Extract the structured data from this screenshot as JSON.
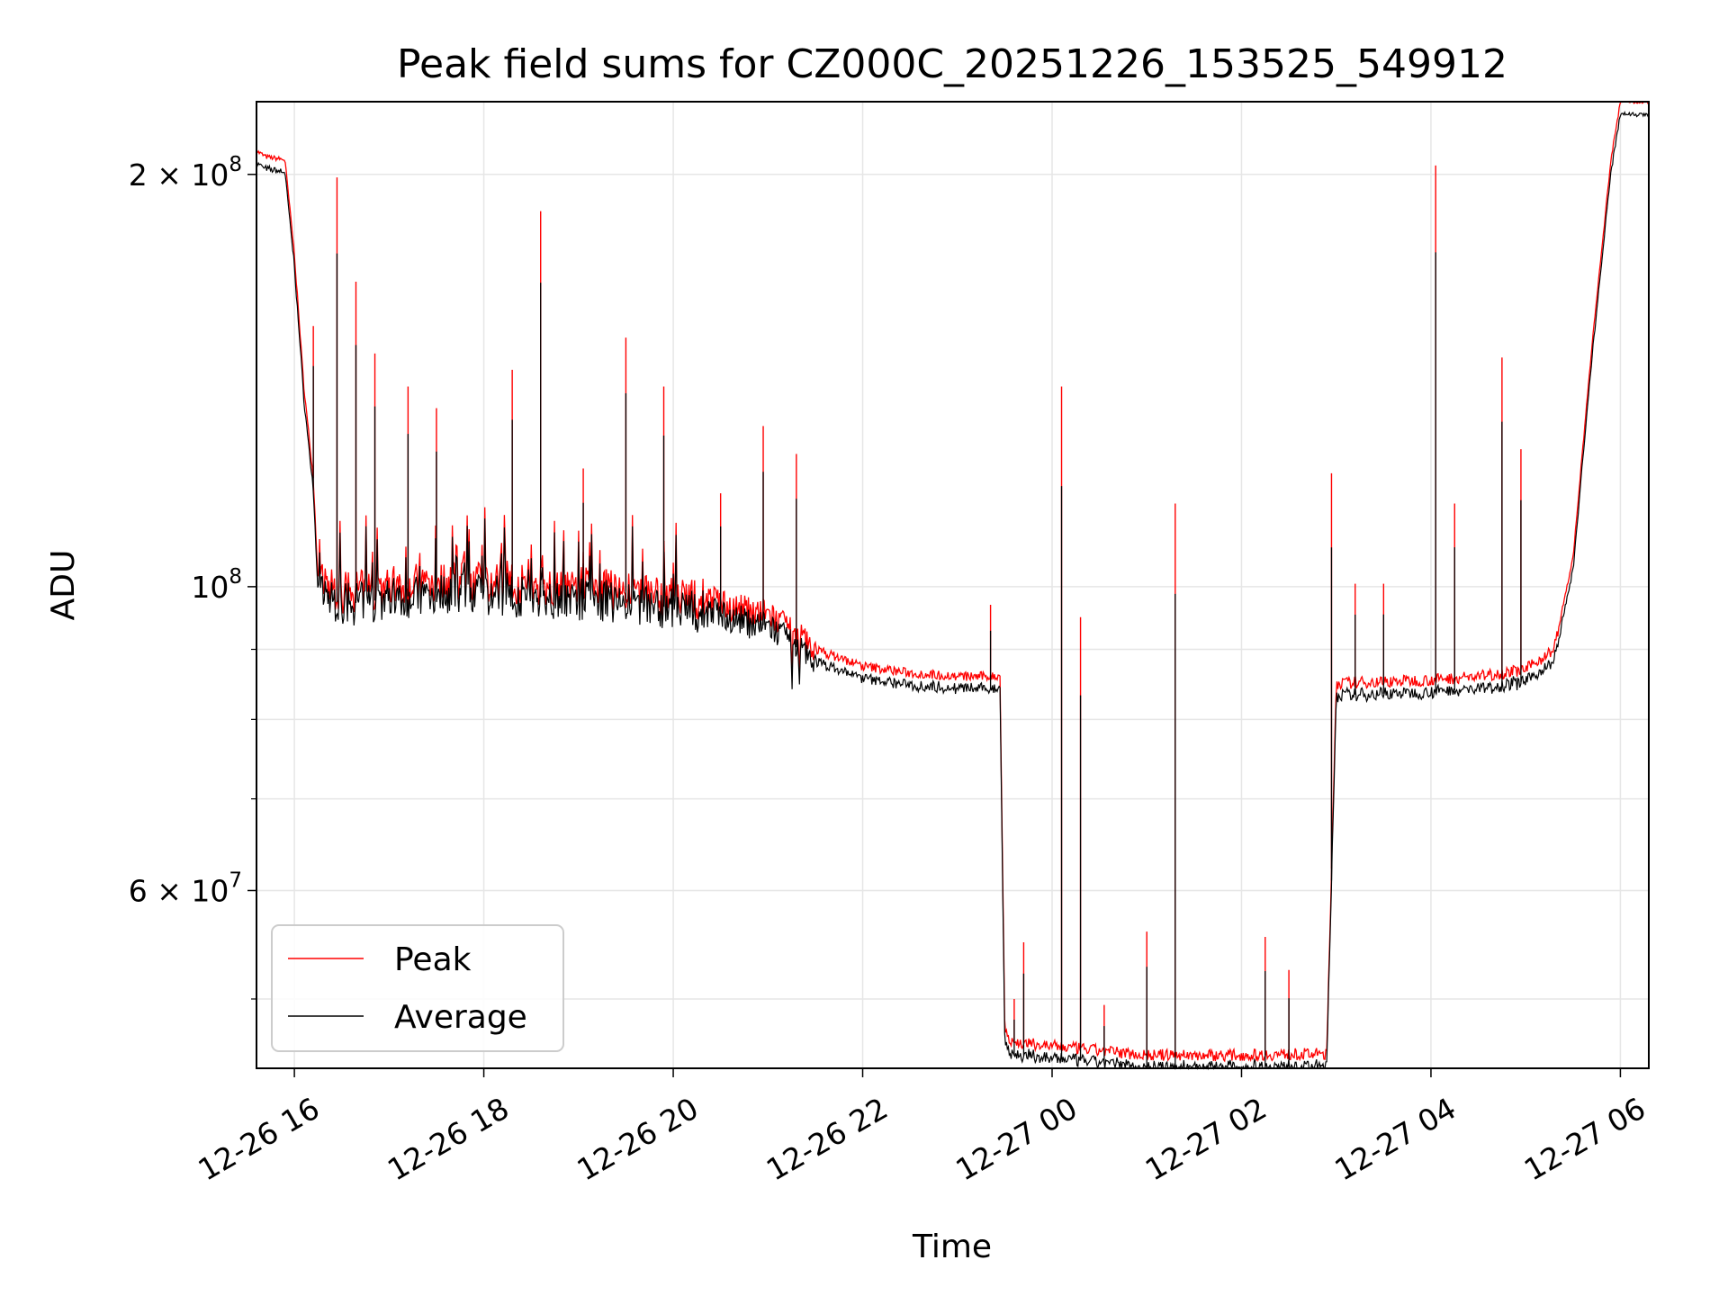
{
  "chart_data": {
    "type": "line",
    "title": "Peak field sums for CZ000C_20251226_153525_549912",
    "xlabel": "Time",
    "ylabel": "ADU",
    "y_scale": "log",
    "ylim": [
      44500000,
      226000000
    ],
    "xlim_hours": [
      -0.4,
      14.3
    ],
    "x_unit": "hours since 12-26 16:00",
    "grid": true,
    "legend_position": "lower-left",
    "x_ticks": [
      {
        "value": 0,
        "label": "12-26 16"
      },
      {
        "value": 2,
        "label": "12-26 18"
      },
      {
        "value": 4,
        "label": "12-26 20"
      },
      {
        "value": 6,
        "label": "12-26 22"
      },
      {
        "value": 8,
        "label": "12-27 00"
      },
      {
        "value": 10,
        "label": "12-27 02"
      },
      {
        "value": 12,
        "label": "12-27 04"
      },
      {
        "value": 14,
        "label": "12-27 06"
      }
    ],
    "y_major_ticks": [
      {
        "value": 200000000,
        "mantissa": "2 × 10",
        "exp": "8"
      },
      {
        "value": 100000000,
        "mantissa": "10",
        "exp": "8"
      },
      {
        "value": 60000000,
        "mantissa": "6 × 10",
        "exp": "7"
      }
    ],
    "y_minor_ticks": [
      50000000,
      70000000,
      80000000,
      90000000
    ],
    "series": [
      {
        "name": "Peak",
        "color": "#ff0000",
        "baseline": [
          [
            -0.4,
            208000000
          ],
          [
            -0.3,
            206000000
          ],
          [
            -0.1,
            205000000
          ],
          [
            0.0,
            175000000
          ],
          [
            0.1,
            140000000
          ],
          [
            0.2,
            120000000
          ],
          [
            0.25,
            101000000
          ],
          [
            0.5,
            99000000
          ],
          [
            1.5,
            101000000
          ],
          [
            3.0,
            100000000
          ],
          [
            4.0,
            98500000
          ],
          [
            5.0,
            95500000
          ],
          [
            5.5,
            90000000
          ],
          [
            6.0,
            87500000
          ],
          [
            6.5,
            86500000
          ],
          [
            7.0,
            86000000
          ],
          [
            7.45,
            86000000
          ],
          [
            7.5,
            48000000
          ],
          [
            7.55,
            46500000
          ],
          [
            8.0,
            46200000
          ],
          [
            9.0,
            45500000
          ],
          [
            10.0,
            45500000
          ],
          [
            10.9,
            45600000
          ],
          [
            11.0,
            85000000
          ],
          [
            12.0,
            85500000
          ],
          [
            12.5,
            86000000
          ],
          [
            13.0,
            87000000
          ],
          [
            13.3,
            90000000
          ],
          [
            13.5,
            105000000
          ],
          [
            13.7,
            150000000
          ],
          [
            13.9,
            205000000
          ],
          [
            14.0,
            226000000
          ],
          [
            14.3,
            226000000
          ]
        ],
        "spikes": [
          [
            0.05,
            156000000
          ],
          [
            0.2,
            155000000
          ],
          [
            0.45,
            199000000
          ],
          [
            0.65,
            167000000
          ],
          [
            0.85,
            148000000
          ],
          [
            1.2,
            140000000
          ],
          [
            1.5,
            135000000
          ],
          [
            2.3,
            144000000
          ],
          [
            2.6,
            188000000
          ],
          [
            3.05,
            122000000
          ],
          [
            3.5,
            152000000
          ],
          [
            3.9,
            140000000
          ],
          [
            4.5,
            117000000
          ],
          [
            4.95,
            131000000
          ],
          [
            5.3,
            125000000
          ],
          [
            7.35,
            97000000
          ],
          [
            7.6,
            50000000
          ],
          [
            7.7,
            55000000
          ],
          [
            8.1,
            140000000
          ],
          [
            8.3,
            95000000
          ],
          [
            8.55,
            49500000
          ],
          [
            9.0,
            56000000
          ],
          [
            9.3,
            115000000
          ],
          [
            10.25,
            55500000
          ],
          [
            10.5,
            52500000
          ],
          [
            10.95,
            121000000
          ],
          [
            11.2,
            100500000
          ],
          [
            11.5,
            100500000
          ],
          [
            12.05,
            203000000
          ],
          [
            12.25,
            115000000
          ],
          [
            12.75,
            147000000
          ],
          [
            12.95,
            126000000
          ]
        ]
      },
      {
        "name": "Average",
        "color": "#000000",
        "offset_ratio": 0.98,
        "spike_ratio": 0.78
      }
    ]
  }
}
